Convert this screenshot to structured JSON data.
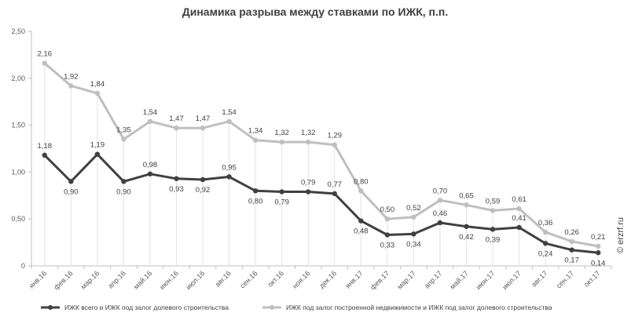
{
  "chart_data": {
    "type": "line",
    "title": "Динамика разрыва между ставками по ИЖК, п.п.",
    "categories": [
      "янв.16",
      "фев.16",
      "мар.16",
      "апр.16",
      "май.16",
      "июн.16",
      "июл.16",
      "авг.16",
      "сен.16",
      "окт.16",
      "ноя.16",
      "дек.16",
      "янв.17",
      "фев.17",
      "мар.17",
      "апр.17",
      "май.17",
      "июн.17",
      "июл.17",
      "авг.17",
      "сен.17",
      "окт.17"
    ],
    "y_ticks": [
      "0",
      "0,50",
      "1,00",
      "1,50",
      "2,00",
      "2,50"
    ],
    "ylim": [
      0,
      2.5
    ],
    "grid": false,
    "legend_position": "bottom",
    "series": [
      {
        "name": "ИЖК всего и ИЖК под залог долевого строительства",
        "color": "#404040",
        "values": [
          1.18,
          0.9,
          1.19,
          0.9,
          0.98,
          0.93,
          0.92,
          0.95,
          0.8,
          0.79,
          0.79,
          0.77,
          0.48,
          0.33,
          0.34,
          0.46,
          0.42,
          0.39,
          0.41,
          0.24,
          0.17,
          0.14
        ],
        "labels": [
          "1,18",
          "0,90",
          "1,19",
          "0,90",
          "0,98",
          "0,93",
          "0,92",
          "0,95",
          "0,80",
          "0,79",
          "0,79",
          "0,77",
          "0,48",
          "0,33",
          "0,34",
          "0,46",
          "0,42",
          "0,39",
          "0,41",
          "0,24",
          "0,17",
          "0,14"
        ]
      },
      {
        "name": "ИЖК под залог построенной недвижимости и ИЖК под залог долевого строительства",
        "color": "#bfbfbf",
        "values": [
          2.16,
          1.92,
          1.84,
          1.35,
          1.54,
          1.47,
          1.47,
          1.54,
          1.34,
          1.32,
          1.32,
          1.29,
          0.8,
          0.5,
          0.52,
          0.7,
          0.65,
          0.59,
          0.61,
          0.36,
          0.26,
          0.21
        ],
        "labels": [
          "2,16",
          "1,92",
          "1,84",
          "1,35",
          "1,54",
          "1,47",
          "1,47",
          "1,54",
          "1,34",
          "1,32",
          "1,32",
          "1,29",
          "0,80",
          "0,50",
          "0,52",
          "0,70",
          "0,65",
          "0,59",
          "0,61",
          "0,36",
          "0,26",
          "0,21"
        ]
      }
    ]
  },
  "watermark": "© erzrf.ru"
}
